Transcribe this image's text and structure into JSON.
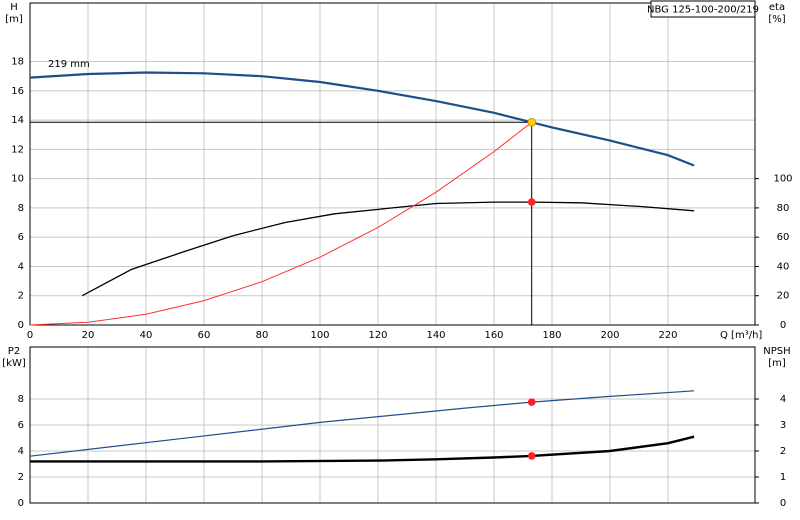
{
  "chart_data": [
    {
      "type": "line",
      "title": "NBG 125-100-200/219",
      "ylabel": [
        "H",
        "[m]"
      ],
      "y2label": [
        "eta",
        "[%]"
      ],
      "xlabel": "Q [m³/h]",
      "xlim": [
        0,
        250
      ],
      "xticks": [
        0,
        20,
        40,
        60,
        80,
        100,
        120,
        140,
        160,
        180,
        200,
        220
      ],
      "ylim": [
        0,
        22
      ],
      "yticks": [
        0,
        2,
        4,
        6,
        8,
        10,
        12,
        14,
        16,
        18
      ],
      "y2lim": [
        0,
        220
      ],
      "y2ticks": [
        0,
        20,
        40,
        60,
        80,
        100
      ],
      "grid": true,
      "series": [
        {
          "name": "219 mm",
          "color": "#1f4e8c",
          "width": 2.2,
          "x": [
            0,
            20,
            40,
            60,
            80,
            100,
            120,
            140,
            160,
            173,
            180,
            200,
            220,
            229
          ],
          "values": [
            16.9,
            17.15,
            17.25,
            17.2,
            17.0,
            16.6,
            16.0,
            15.3,
            14.5,
            13.85,
            13.5,
            12.6,
            11.6,
            10.9
          ]
        },
        {
          "color": "#000000",
          "width": 1.3,
          "axis": "y2",
          "x": [
            18,
            35,
            53,
            70,
            88,
            105,
            125,
            140,
            160,
            173,
            190,
            210,
            229
          ],
          "values": [
            20,
            38,
            50,
            61,
            70,
            76,
            80,
            83,
            84,
            84,
            83.5,
            81,
            78
          ]
        },
        {
          "color": "#ff3030",
          "width": 1,
          "x": [
            0,
            20,
            40,
            60,
            80,
            100,
            120,
            140,
            160,
            173
          ],
          "values": [
            0,
            0.185,
            0.74,
            1.67,
            2.96,
            4.63,
            6.66,
            9.07,
            11.85,
            13.85
          ]
        },
        {
          "color": "#ffd200",
          "marker": true,
          "guides": true,
          "x": [
            173
          ],
          "values": [
            13.85
          ]
        },
        {
          "color": "#ff2020",
          "marker": true,
          "axis": "y2",
          "x": [
            173
          ],
          "values": [
            84
          ]
        }
      ]
    },
    {
      "type": "line",
      "ylabel": [
        "P2",
        "[kW]"
      ],
      "y2label": [
        "NPSH",
        "[m]"
      ],
      "xlim": [
        0,
        250
      ],
      "ylim": [
        0,
        12
      ],
      "yticks": [
        0,
        2,
        4,
        6,
        8
      ],
      "y2lim": [
        0,
        6
      ],
      "y2ticks": [
        0,
        1,
        2,
        3,
        4
      ],
      "grid": true,
      "series": [
        {
          "color": "#1f4e8c",
          "width": 1.2,
          "x": [
            0,
            50,
            100,
            150,
            173,
            200,
            229
          ],
          "values": [
            3.6,
            4.9,
            6.2,
            7.3,
            7.76,
            8.2,
            8.63
          ]
        },
        {
          "color": "#000000",
          "width": 2.4,
          "axis": "y2",
          "x": [
            0,
            23,
            80,
            120,
            140,
            160,
            173,
            200,
            220,
            229
          ],
          "values": [
            1.6,
            1.6,
            1.6,
            1.63,
            1.68,
            1.75,
            1.81,
            2.0,
            2.3,
            2.55
          ]
        },
        {
          "color": "#ff2020",
          "marker": true,
          "x": [
            173
          ],
          "values": [
            7.76
          ]
        },
        {
          "color": "#ff2020",
          "marker": true,
          "axis": "y2",
          "x": [
            173
          ],
          "values": [
            1.81
          ]
        }
      ]
    }
  ]
}
